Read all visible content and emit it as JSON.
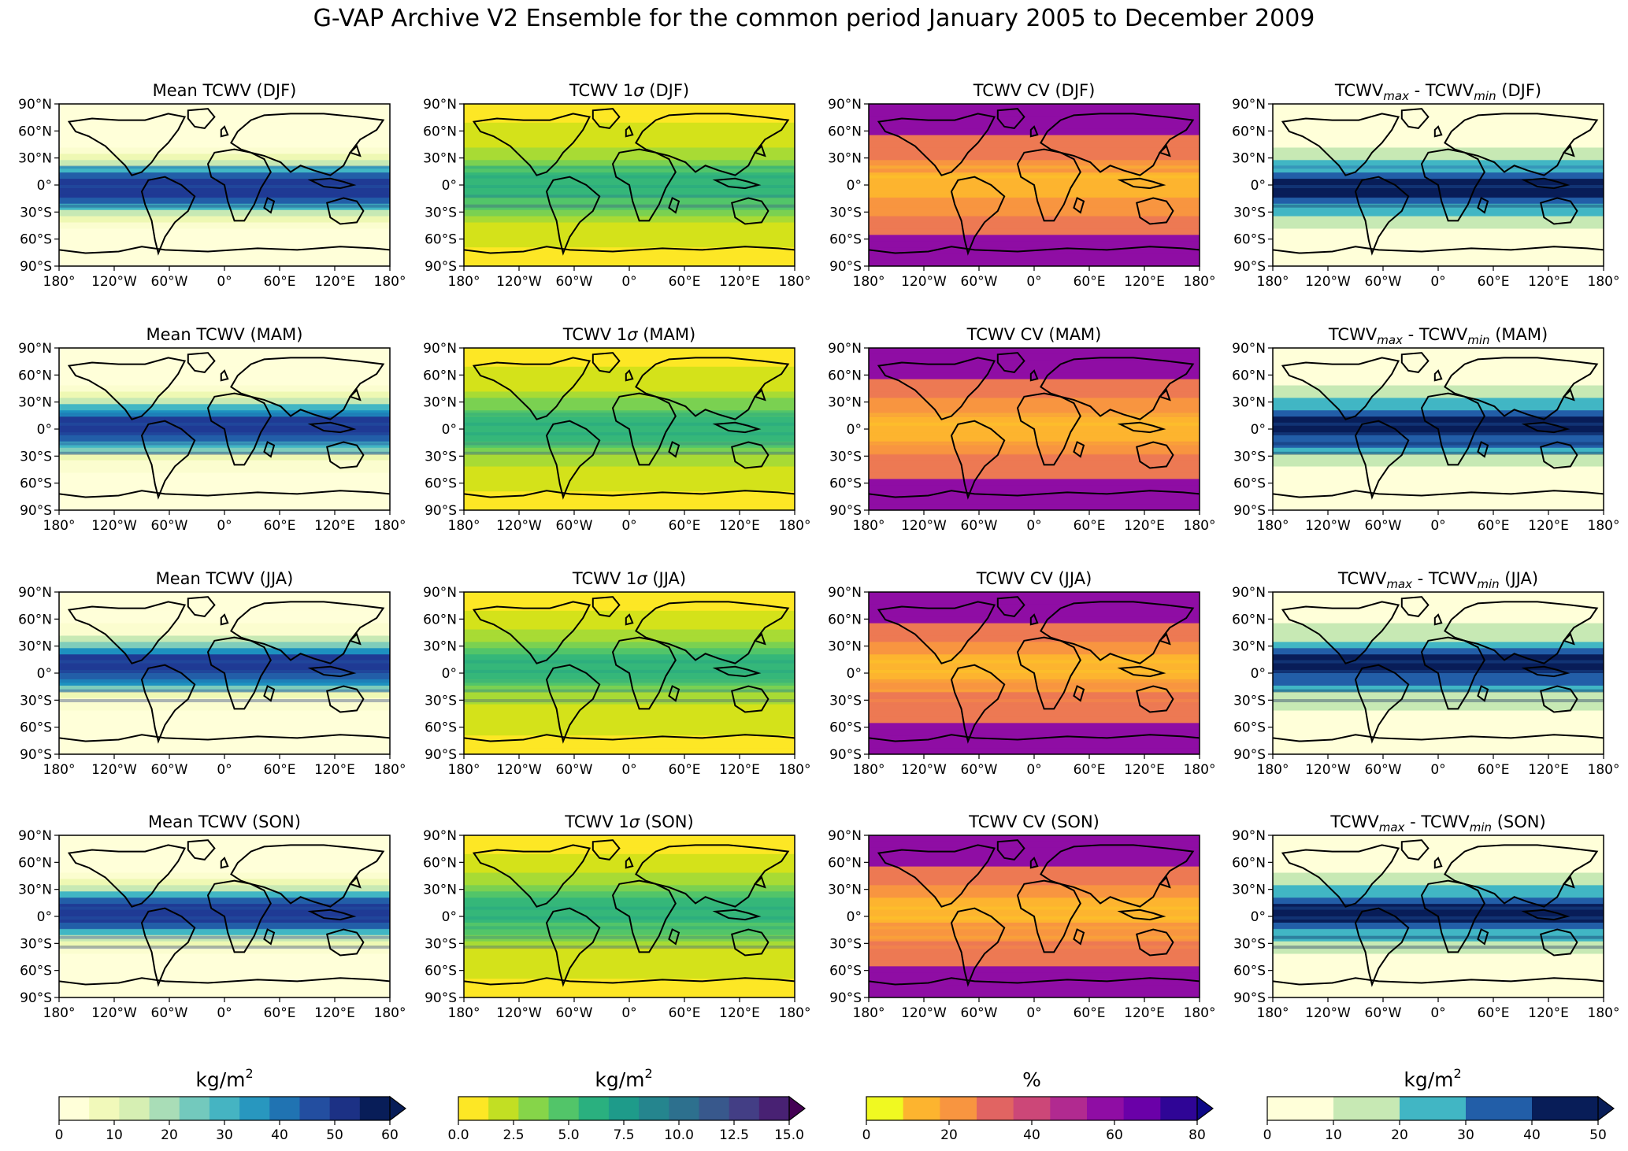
{
  "title": "G-VAP Archive V2 Ensemble for the common period January 2005 to December 2009",
  "seasons": [
    "DJF",
    "MAM",
    "JJA",
    "SON"
  ],
  "columns": [
    {
      "id": "mean",
      "panel_titles": [
        "Mean TCWV (DJF)",
        "Mean TCWV (MAM)",
        "Mean TCWV (JJA)",
        "Mean TCWV (SON)"
      ],
      "colormap": "YlGnBu"
    },
    {
      "id": "sigma",
      "panel_titles": [
        "TCWV 1σ (DJF)",
        "TCWV 1σ (MAM)",
        "TCWV 1σ (JJA)",
        "TCWV 1σ (SON)"
      ],
      "colormap": "viridis_r"
    },
    {
      "id": "cv",
      "panel_titles": [
        "TCWV CV (DJF)",
        "TCWV CV (MAM)",
        "TCWV CV (JJA)",
        "TCWV CV (SON)"
      ],
      "colormap": "plasma_r"
    },
    {
      "id": "range",
      "panel_titles": [
        "TCWVmax - TCWVmin (DJF)",
        "TCWVmax - TCWVmin (MAM)",
        "TCWVmax - TCWVmin (JJA)",
        "TCWVmax - TCWVmin (SON)"
      ],
      "title_parts": {
        "base": "TCWV",
        "sub_max": "max",
        "sep": " - ",
        "sub_min": "min"
      },
      "colormap": "YlGnBu"
    }
  ],
  "lat_ticks": [
    "90°N",
    "60°N",
    "30°N",
    "0°",
    "30°S",
    "60°S",
    "90°S"
  ],
  "lon_ticks": [
    "180°",
    "120°W",
    "60°W",
    "0°",
    "60°E",
    "120°E",
    "180°"
  ],
  "colorbars": [
    {
      "label": "kg/m",
      "sup": "2",
      "ticks": [
        "0",
        "10",
        "20",
        "30",
        "40",
        "50",
        "60"
      ],
      "colors": [
        "#ffffd9",
        "#f1f9ba",
        "#d6efb3",
        "#a9ddb7",
        "#73c9bd",
        "#45b4c2",
        "#2897bf",
        "#2073b2",
        "#234ea0",
        "#1c3185",
        "#081d58"
      ],
      "extend_color": "#081d58"
    },
    {
      "label": "kg/m",
      "sup": "2",
      "ticks": [
        "0.0",
        "2.5",
        "5.0",
        "7.5",
        "10.0",
        "12.5",
        "15.0"
      ],
      "colors": [
        "#fde725",
        "#c2df23",
        "#86d549",
        "#52c569",
        "#2ab07f",
        "#1e9b8a",
        "#25858e",
        "#2d708e",
        "#38588c",
        "#433e85",
        "#482173"
      ],
      "extend_color": "#440154"
    },
    {
      "label": "%",
      "sup": "",
      "ticks": [
        "0",
        "20",
        "40",
        "60",
        "80"
      ],
      "colors": [
        "#f0f921",
        "#fdb42f",
        "#f89540",
        "#e16462",
        "#cc4778",
        "#b12a90",
        "#8f0da4",
        "#6a00a8",
        "#2f0596"
      ],
      "extend_color": "#0d0887"
    },
    {
      "label": "kg/m",
      "sup": "2",
      "ticks": [
        "0",
        "10",
        "20",
        "30",
        "40",
        "50"
      ],
      "colors": [
        "#ffffd9",
        "#c7e9b4",
        "#41b6c4",
        "#225ea8",
        "#081d58"
      ],
      "extend_color": "#081d58"
    }
  ]
}
